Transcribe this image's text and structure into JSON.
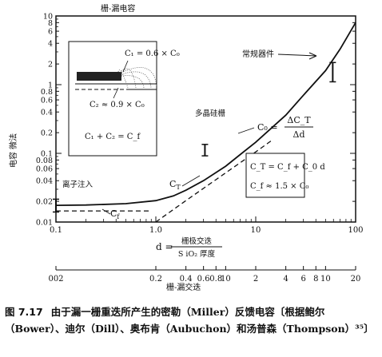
{
  "chart_data": {
    "type": "line",
    "title": "栅-漏电容",
    "xscale": "log",
    "yscale": "log",
    "xlim": [
      0.1,
      100
    ],
    "ylim": [
      0.01,
      10
    ],
    "ylabel": "电容 微法",
    "xlabel": {
      "prefix": "d =",
      "numerator": "栅极交迭",
      "denominator": "S iO₂ 厚度"
    },
    "top_axis_label": "栅-漏电容",
    "x_ticks": [
      "0.1",
      "1.0",
      "10",
      "100"
    ],
    "y_ticks": [
      "0.01",
      "0.02",
      "0.04",
      "0.06",
      "0.08",
      "0.1",
      "0.2",
      "0.4",
      "0.6",
      "0.8",
      "1",
      "2",
      "4",
      "6",
      "8",
      "10"
    ],
    "secondary_x_axis": {
      "label": "栅-漏交迭",
      "ticks": [
        {
          "label": "002",
          "d": 0.1
        },
        {
          "label": "0.2",
          "d": 1
        },
        {
          "label": "0.4",
          "d": 2
        },
        {
          "label": "0.6",
          "d": 3
        },
        {
          "label": "0.8",
          "d": 4
        },
        {
          "label": "10",
          "d": 5
        },
        {
          "label": "2",
          "d": 10
        },
        {
          "label": "4",
          "d": 20
        },
        {
          "label": "6",
          "d": 30
        },
        {
          "label": "8",
          "d": 40
        },
        {
          "label": "10",
          "d": 50
        },
        {
          "label": "20",
          "d": 100
        }
      ]
    },
    "series": [
      {
        "name": "C_T",
        "style": "solid",
        "points": [
          [
            0.1,
            0.0175
          ],
          [
            0.2,
            0.0177
          ],
          [
            0.5,
            0.0185
          ],
          [
            1,
            0.0205
          ],
          [
            1.5,
            0.024
          ],
          [
            2,
            0.029
          ],
          [
            3,
            0.04
          ],
          [
            5,
            0.065
          ],
          [
            7,
            0.096
          ],
          [
            10,
            0.145
          ],
          [
            20,
            0.36
          ],
          [
            30,
            0.7
          ],
          [
            50,
            1.6
          ],
          [
            70,
            3.3
          ],
          [
            100,
            8
          ]
        ]
      },
      {
        "name": "C_f",
        "style": "dashed",
        "points": [
          [
            0.1,
            0.0145
          ],
          [
            0.9,
            0.0145
          ]
        ]
      },
      {
        "name": "C_o",
        "style": "dashed",
        "points": [
          [
            1,
            0.01
          ],
          [
            2,
            0.0205
          ],
          [
            5,
            0.052
          ],
          [
            10,
            0.105
          ],
          [
            15,
            0.16
          ]
        ]
      }
    ],
    "ranges": [
      {
        "label": "离子注入",
        "d": 0.1,
        "ymin": 0.014,
        "ymax": 0.0215
      },
      {
        "label": "多晶硅栅",
        "d": 3.1,
        "ymin": 0.092,
        "ymax": 0.135
      },
      {
        "label": "常规器件",
        "d": 59,
        "ymin": 1.1,
        "ymax": 2.1
      }
    ],
    "annotations": {
      "c_o_formula": {
        "lhs": "C₀ =",
        "num": "ΔC_T",
        "den": "Δd"
      },
      "total_formula": "C_T = C_f + C_0 d",
      "cf_formula": "C_f ≈ 1.5 × C₀"
    },
    "inset": {
      "c1": "C₁ = 0.6 × C₀",
      "c2": "C₂ ≈ 0.9 × C₀",
      "sum": "C₁ + C₂ = C_f"
    }
  },
  "caption": {
    "number": "图 7.17",
    "text": "由于漏一栅重迭所产生的密勒（Miller）反馈电容〔根据鲍尔（Bower）、迪尔（Dill）、奥布肯（Aubuchon）和汤普森（Thompson）³⁵〕"
  }
}
